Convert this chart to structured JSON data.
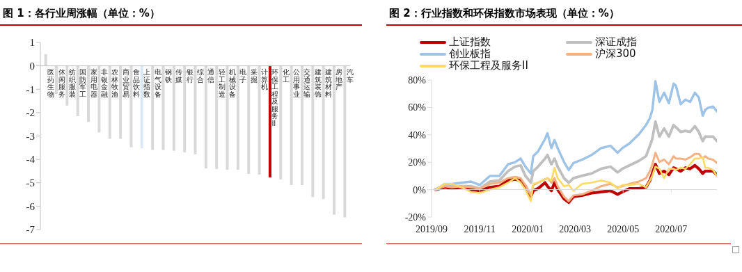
{
  "chart_data": [
    {
      "type": "bar",
      "title": "图 1：各行业周涨幅（单位：%）",
      "categories": [
        "医药生物",
        "休闲服务",
        "纺织服装",
        "国防军工",
        "家用电器",
        "非银金融",
        "农林牧渔",
        "商业贸易",
        "食品饮料",
        "上证指数",
        "电气设备",
        "钢铁",
        "传媒",
        "银行",
        "综合",
        "通信",
        "轻工制造",
        "机械设备",
        "电子",
        "采掘",
        "计算机",
        "环保工程及服务II",
        "化工",
        "公用事业",
        "交通运输",
        "建筑装饰",
        "建筑材料",
        "房地产",
        "汽车"
      ],
      "values": [
        0.5,
        -1.2,
        -1.7,
        -2.15,
        -2.4,
        -2.85,
        -3.12,
        -3.12,
        -3.48,
        -3.53,
        -3.6,
        -3.6,
        -3.63,
        -3.7,
        -3.78,
        -4.38,
        -4.41,
        -4.44,
        -4.44,
        -4.62,
        -4.65,
        -4.77,
        -4.86,
        -5.1,
        -5.1,
        -5.61,
        -5.7,
        -6.36,
        -6.48
      ],
      "colors": [
        "#d9d9d9",
        "#d9d9d9",
        "#d9d9d9",
        "#d9d9d9",
        "#d9d9d9",
        "#d9d9d9",
        "#d9d9d9",
        "#d9d9d9",
        "#d9d9d9",
        "#dae8f6",
        "#d9d9d9",
        "#d9d9d9",
        "#d9d9d9",
        "#d9d9d9",
        "#d9d9d9",
        "#d9d9d9",
        "#d9d9d9",
        "#d9d9d9",
        "#d9d9d9",
        "#d9d9d9",
        "#d9d9d9",
        "#c00000",
        "#d9d9d9",
        "#d9d9d9",
        "#d9d9d9",
        "#d9d9d9",
        "#d9d9d9",
        "#d9d9d9",
        "#d9d9d9"
      ],
      "ylim": [
        -7,
        1
      ],
      "yticks": [
        -7,
        -6,
        -5,
        -4,
        -3,
        -2,
        -1,
        0,
        1
      ]
    },
    {
      "type": "line",
      "title": "图 2：行业指数和环保指数市场表现（单位：%）",
      "legend": "top",
      "x": [
        "2019-09-06",
        "2019-09-18",
        "2019-09-27",
        "2019-10-09",
        "2019-10-21",
        "2019-11-01",
        "2019-11-14",
        "2019-11-26",
        "2019-12-07",
        "2019-12-16",
        "2019-12-23",
        "2019-12-29",
        "2020-01-05",
        "2020-01-08",
        "2020-01-14",
        "2020-01-23",
        "2020-01-26",
        "2020-01-31",
        "2020-02-04",
        "2020-02-08",
        "2020-02-16",
        "2020-02-22",
        "2020-02-28",
        "2020-03-10",
        "2020-03-22",
        "2020-04-03",
        "2020-04-15",
        "2020-04-24",
        "2020-04-30",
        "2020-05-09",
        "2020-05-21",
        "2020-05-30",
        "2020-06-04",
        "2020-06-07",
        "2020-06-11",
        "2020-06-16",
        "2020-06-22",
        "2020-06-28",
        "2020-07-04",
        "2020-07-07",
        "2020-07-13",
        "2020-07-19",
        "2020-07-25",
        "2020-07-31",
        "2020-08-05",
        "2020-08-10",
        "2020-08-13",
        "2020-08-17",
        "2020-08-23",
        "2020-08-28"
      ],
      "xlim": [
        "2019-09-01",
        "2020-08-28"
      ],
      "xticks": [
        {
          "value": "2019-09",
          "label": "2019/09"
        },
        {
          "value": "2019-11",
          "label": "2019/11"
        },
        {
          "value": "2020-01",
          "label": "2020/01"
        },
        {
          "value": "2020-03",
          "label": "2020/03"
        },
        {
          "value": "2020-05",
          "label": "2020/05"
        },
        {
          "value": "2020-07",
          "label": "2020/07"
        }
      ],
      "ylim": [
        -20,
        80
      ],
      "yticks": [
        {
          "value": -20,
          "label": "-20%"
        },
        {
          "value": 0,
          "label": "0%"
        },
        {
          "value": 20,
          "label": "20%"
        },
        {
          "value": 40,
          "label": "40%"
        },
        {
          "value": 60,
          "label": "60%"
        },
        {
          "value": 80,
          "label": "80%"
        }
      ],
      "series": [
        {
          "name": "上证指数",
          "color": "#c00000",
          "values": [
            0,
            1.7,
            0.8,
            1.7,
            0,
            -0.8,
            1.7,
            2.5,
            6.7,
            7.6,
            6.7,
            2.5,
            -5.1,
            -0.8,
            0.8,
            5.1,
            2.5,
            -0.8,
            5.1,
            0,
            -6.7,
            -9.3,
            -5.1,
            -4.2,
            -2.5,
            -1.7,
            -0.8,
            -3.4,
            -1.7,
            0.8,
            0.8,
            1.7,
            6.7,
            11.8,
            18.5,
            11.8,
            13.5,
            10.9,
            16,
            15.2,
            13.5,
            16,
            15.2,
            17.7,
            15.2,
            11.8,
            13.5,
            13.5,
            13.5,
            10.9
          ]
        },
        {
          "name": "深证成指",
          "color": "#bfbfbf",
          "values": [
            0,
            3.4,
            2.5,
            2.5,
            2.5,
            0.8,
            5.9,
            6.7,
            13.5,
            16.8,
            17.7,
            10.1,
            5.1,
            13.5,
            16.8,
            22.7,
            25.3,
            18.5,
            22.7,
            16.8,
            8.4,
            5.1,
            8.4,
            10.1,
            11.8,
            15.2,
            16.8,
            12.6,
            15.2,
            17.7,
            21,
            24.4,
            32,
            37,
            49.7,
            38.7,
            44.6,
            38.7,
            47.1,
            45.5,
            42.1,
            42.9,
            42.1,
            46.3,
            42.1,
            35.4,
            38.7,
            38.7,
            38.7,
            35.4
          ]
        },
        {
          "name": "创业板指",
          "color": "#9dc3e6",
          "values": [
            0,
            4.2,
            4.2,
            5,
            5.9,
            3.4,
            10,
            10,
            18.5,
            20,
            22.7,
            16.8,
            11.8,
            24.4,
            27.8,
            37,
            41.2,
            30.3,
            36.2,
            30.3,
            20.2,
            14.3,
            19.4,
            21.9,
            25.3,
            30.3,
            32,
            26.9,
            30.3,
            33.7,
            40.4,
            47.1,
            52.2,
            58,
            79.1,
            64,
            70.7,
            63.1,
            77.4,
            75.8,
            62.3,
            65.7,
            64,
            70.7,
            67.3,
            53.9,
            58.1,
            59.8,
            60.6,
            57.2
          ]
        },
        {
          "name": "沪深300",
          "color": "#f4b183",
          "values": [
            0,
            2.5,
            1.7,
            2.5,
            1.7,
            0.8,
            4.2,
            5.1,
            8.4,
            9.3,
            8.4,
            3.4,
            -4.2,
            3.4,
            5.1,
            7.6,
            8.4,
            5.1,
            8.4,
            2.5,
            -5.1,
            -8.4,
            -4.2,
            -3.4,
            -0.8,
            2.5,
            4.2,
            1.7,
            2.5,
            4.2,
            5.9,
            8.4,
            13.5,
            18.5,
            26.9,
            20.2,
            21.9,
            18.5,
            24.4,
            22.7,
            22.7,
            21.9,
            23.6,
            26.1,
            26.1,
            22.7,
            24.4,
            22.7,
            21.9,
            19.4
          ]
        },
        {
          "name": "环保工程及服务II",
          "color": "#ffd966",
          "values": [
            0,
            4.2,
            4.2,
            1.7,
            -1.7,
            -2.5,
            0,
            1.7,
            5.1,
            8.4,
            5.1,
            0,
            -8.4,
            4.2,
            5.1,
            7.6,
            8.4,
            6.7,
            16,
            8.4,
            2.5,
            3.4,
            -0.8,
            4.2,
            5.1,
            6.7,
            5.1,
            0.8,
            3.4,
            3.4,
            4.2,
            1.7,
            6.7,
            10.1,
            16.8,
            15.2,
            8.4,
            15.2,
            15.2,
            14.3,
            16,
            15.2,
            18.5,
            22.7,
            22.7,
            23.6,
            16,
            16,
            14.3,
            10.1
          ]
        }
      ]
    }
  ]
}
